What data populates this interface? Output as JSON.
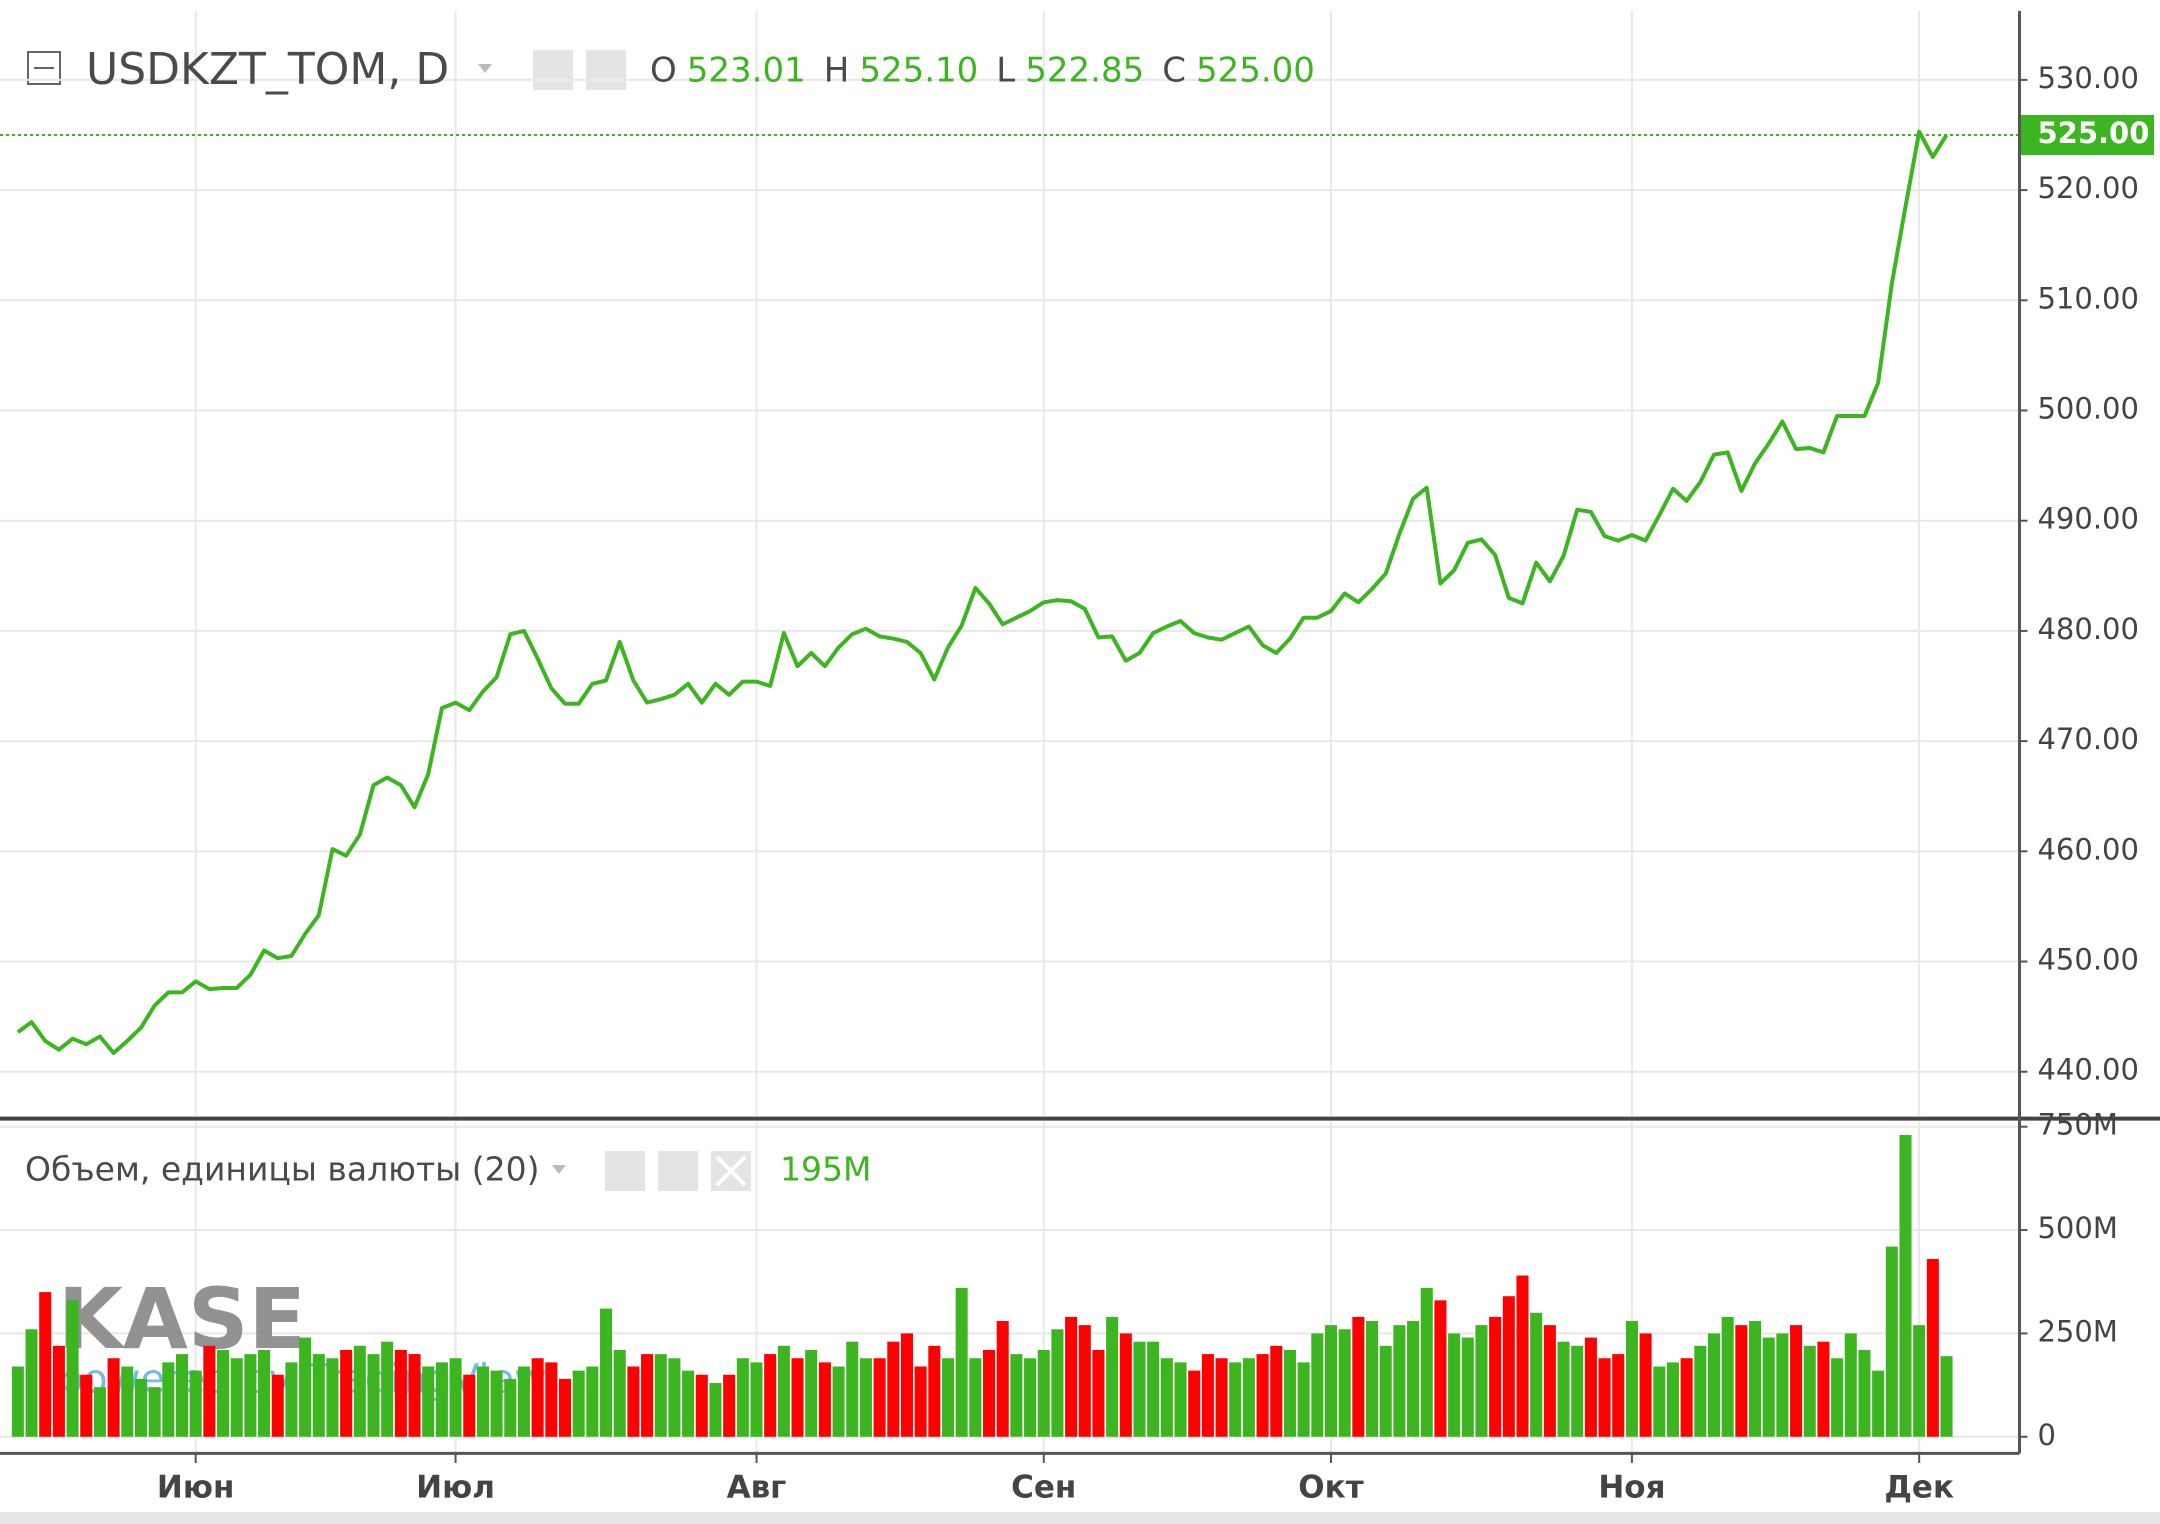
{
  "chart_data": [
    {
      "type": "line",
      "symbol": "USDKZT_TOM, D",
      "ohlc": [
        {
          "label": "O",
          "value": "523.01"
        },
        {
          "label": "H",
          "value": "525.10"
        },
        {
          "label": "L",
          "value": "522.85"
        },
        {
          "label": "C",
          "value": "525.00"
        }
      ],
      "last_label": "525.00",
      "color": "#3cb521",
      "grid": true,
      "categories": [
        null,
        null,
        null,
        null,
        null,
        null,
        null,
        null,
        null,
        null,
        null,
        null,
        null,
        "Июн",
        null,
        null,
        null,
        null,
        null,
        null,
        null,
        null,
        null,
        null,
        null,
        null,
        null,
        null,
        null,
        null,
        null,
        null,
        "Июл",
        null,
        null,
        null,
        null,
        null,
        null,
        null,
        null,
        null,
        null,
        null,
        null,
        null,
        null,
        null,
        null,
        null,
        null,
        null,
        null,
        null,
        "Авг",
        null,
        null,
        null,
        null,
        null,
        null,
        null,
        null,
        null,
        null,
        null,
        null,
        null,
        null,
        null,
        null,
        null,
        null,
        null,
        null,
        "Сен",
        null,
        null,
        null,
        null,
        null,
        null,
        null,
        null,
        null,
        null,
        null,
        null,
        null,
        null,
        null,
        null,
        null,
        null,
        null,
        null,
        "Окт",
        null,
        null,
        null,
        null,
        null,
        null,
        null,
        null,
        null,
        null,
        null,
        null,
        null,
        null,
        null,
        null,
        null,
        null,
        null,
        null,
        null,
        "Ноя",
        null,
        null,
        null,
        null,
        null,
        null,
        null,
        null,
        null,
        null,
        null,
        null,
        null,
        null,
        null,
        null,
        null,
        null,
        null,
        null,
        "Дек",
        null,
        null
      ],
      "values": [
        443.6,
        444.5,
        442.8,
        442,
        443,
        442.5,
        443.2,
        441.7,
        442.8,
        444,
        446,
        447.2,
        447.2,
        448.2,
        447.5,
        447.6,
        447.6,
        448.8,
        451,
        450.3,
        450.5,
        452.5,
        454.2,
        460.2,
        459.6,
        461.5,
        466,
        466.7,
        466,
        464,
        467,
        473,
        473.5,
        472.8,
        474.5,
        475.8,
        479.7,
        480,
        477.5,
        474.8,
        473.4,
        473.4,
        475.2,
        475.5,
        479,
        475.5,
        473.5,
        473.8,
        474.2,
        475.2,
        473.5,
        475.2,
        474.2,
        475.4,
        475.4,
        475,
        479.8,
        476.8,
        478,
        476.8,
        478.5,
        479.7,
        480.2,
        479.5,
        479.3,
        479,
        478,
        475.6,
        478.5,
        480.5,
        483.9,
        482.5,
        480.6,
        481.2,
        481.8,
        482.6,
        482.8,
        482.7,
        482,
        479.4,
        479.5,
        477.3,
        478,
        479.8,
        480.4,
        480.9,
        479.8,
        479.4,
        479.2,
        479.8,
        480.4,
        478.7,
        478,
        479.3,
        481.2,
        481.2,
        481.8,
        483.4,
        482.6,
        483.8,
        485.2,
        488.8,
        492,
        493,
        484.3,
        485.5,
        488,
        488.3,
        486.9,
        483,
        482.5,
        486.2,
        484.5,
        486.8,
        491,
        490.8,
        488.6,
        488.2,
        488.7,
        488.2,
        490.5,
        492.9,
        491.8,
        493.5,
        496,
        496.2,
        492.7,
        495.2,
        497,
        499,
        496.5,
        496.6,
        496.2,
        499.5,
        499.5,
        499.5,
        502.5,
        511.5,
        518.5,
        525.3,
        523,
        525
      ],
      "ylim": [
        436,
        536.25
      ],
      "yticks": [
        {
          "value": 440,
          "label": "440.00"
        },
        {
          "value": 450,
          "label": "450.00"
        },
        {
          "value": 460,
          "label": "460.00"
        },
        {
          "value": 470,
          "label": "470.00"
        },
        {
          "value": 480,
          "label": "480.00"
        },
        {
          "value": 490,
          "label": "490.00"
        },
        {
          "value": 500,
          "label": "500.00"
        },
        {
          "value": 510,
          "label": "510.00"
        },
        {
          "value": 520,
          "label": "520.00"
        },
        {
          "value": 530,
          "label": "530.00"
        }
      ],
      "watermark": {
        "logo": "KASE",
        "text": "powered by TradingView"
      }
    },
    {
      "type": "bar",
      "title": "Объем, единицы валюты (20)",
      "value_label": "195M",
      "up_color": "#3cb521",
      "down_color": "#ff0000",
      "grid": true,
      "values": [
        170,
        260,
        350,
        220,
        330,
        150,
        120,
        190,
        170,
        140,
        120,
        180,
        200,
        160,
        220,
        210,
        190,
        200,
        210,
        150,
        180,
        240,
        200,
        190,
        210,
        220,
        200,
        230,
        210,
        200,
        170,
        180,
        190,
        150,
        170,
        160,
        140,
        170,
        190,
        180,
        140,
        160,
        170,
        310,
        210,
        170,
        200,
        200,
        190,
        160,
        150,
        130,
        150,
        190,
        180,
        200,
        220,
        190,
        210,
        180,
        170,
        230,
        190,
        190,
        230,
        250,
        170,
        220,
        190,
        360,
        190,
        210,
        280,
        200,
        190,
        210,
        260,
        290,
        270,
        210,
        290,
        250,
        230,
        230,
        190,
        180,
        160,
        200,
        190,
        180,
        190,
        200,
        220,
        210,
        180,
        250,
        270,
        260,
        290,
        280,
        220,
        270,
        280,
        360,
        330,
        250,
        240,
        270,
        290,
        340,
        390,
        300,
        270,
        230,
        220,
        240,
        190,
        200,
        280,
        250,
        170,
        180,
        190,
        220,
        250,
        290,
        270,
        280,
        240,
        250,
        270,
        220,
        230,
        190,
        250,
        210,
        160,
        460,
        730,
        270,
        430,
        195
      ],
      "ylim": [
        -40,
        763
      ],
      "yticks": [
        0,
        {
          "value": 250,
          "label": "250M"
        },
        {
          "value": 500,
          "label": "500M"
        },
        {
          "value": 750,
          "label": "750M"
        }
      ]
    }
  ]
}
